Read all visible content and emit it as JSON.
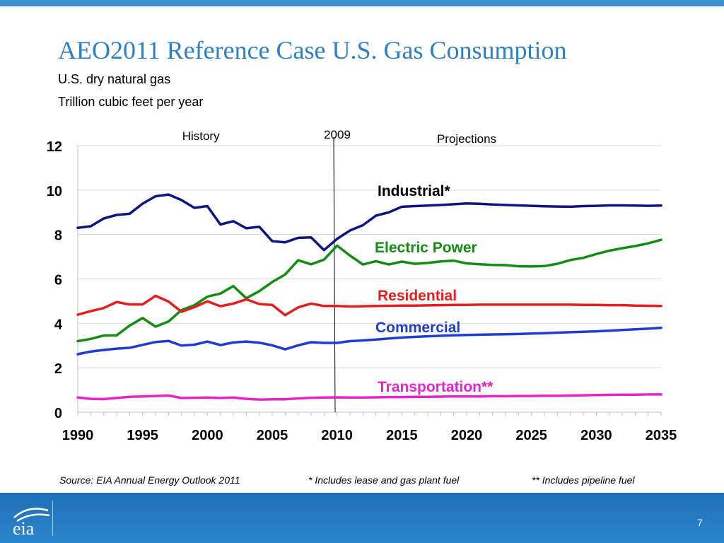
{
  "slide": {
    "title": "AEO2011 Reference Case U.S. Gas Consumption",
    "subtitle1": "U.S. dry natural gas",
    "subtitle2": "Trillion cubic feet per year",
    "source": "Source: EIA Annual Energy Outlook 2011",
    "note1": "*  Includes lease and gas plant fuel",
    "note2": "**  Includes pipeline fuel",
    "logo_text": "eia",
    "page_number": "7",
    "bar_color": "#3c8fd1"
  },
  "chart_data": {
    "type": "line",
    "xlim": [
      1990,
      2035
    ],
    "ylim": [
      0,
      12
    ],
    "x_ticks": [
      1990,
      1995,
      2000,
      2005,
      2010,
      2015,
      2020,
      2025,
      2030,
      2035
    ],
    "y_ticks": [
      0,
      2,
      4,
      6,
      8,
      10,
      12
    ],
    "grid": "horizontal",
    "history_label": "History",
    "projections_label": "Projections",
    "divider_label": "2009",
    "divider_year": 2009.8,
    "series": [
      {
        "name": "Industrial*",
        "color": "#0d1580",
        "values": [
          [
            1990,
            8.3
          ],
          [
            1991,
            8.37
          ],
          [
            1992,
            8.72
          ],
          [
            1993,
            8.88
          ],
          [
            1994,
            8.93
          ],
          [
            1995,
            9.39
          ],
          [
            1996,
            9.72
          ],
          [
            1997,
            9.8
          ],
          [
            1998,
            9.55
          ],
          [
            1999,
            9.2
          ],
          [
            2000,
            9.28
          ],
          [
            2001,
            8.45
          ],
          [
            2002,
            8.6
          ],
          [
            2003,
            8.28
          ],
          [
            2004,
            8.35
          ],
          [
            2005,
            7.7
          ],
          [
            2006,
            7.65
          ],
          [
            2007,
            7.85
          ],
          [
            2008,
            7.87
          ],
          [
            2009,
            7.3
          ],
          [
            2010,
            7.8
          ],
          [
            2011,
            8.18
          ],
          [
            2012,
            8.42
          ],
          [
            2013,
            8.85
          ],
          [
            2014,
            9.0
          ],
          [
            2015,
            9.25
          ],
          [
            2016,
            9.28
          ],
          [
            2017,
            9.3
          ],
          [
            2018,
            9.33
          ],
          [
            2019,
            9.36
          ],
          [
            2020,
            9.4
          ],
          [
            2021,
            9.38
          ],
          [
            2022,
            9.35
          ],
          [
            2023,
            9.33
          ],
          [
            2024,
            9.31
          ],
          [
            2025,
            9.29
          ],
          [
            2026,
            9.27
          ],
          [
            2027,
            9.26
          ],
          [
            2028,
            9.25
          ],
          [
            2029,
            9.28
          ],
          [
            2030,
            9.29
          ],
          [
            2031,
            9.31
          ],
          [
            2032,
            9.31
          ],
          [
            2033,
            9.3
          ],
          [
            2034,
            9.29
          ],
          [
            2035,
            9.3
          ]
        ]
      },
      {
        "name": "Electric Power",
        "color": "#148c14",
        "values": [
          [
            1990,
            3.2
          ],
          [
            1991,
            3.3
          ],
          [
            1992,
            3.45
          ],
          [
            1993,
            3.46
          ],
          [
            1994,
            3.9
          ],
          [
            1995,
            4.24
          ],
          [
            1996,
            3.85
          ],
          [
            1997,
            4.08
          ],
          [
            1998,
            4.6
          ],
          [
            1999,
            4.82
          ],
          [
            2000,
            5.2
          ],
          [
            2001,
            5.34
          ],
          [
            2002,
            5.68
          ],
          [
            2003,
            5.13
          ],
          [
            2004,
            5.45
          ],
          [
            2005,
            5.86
          ],
          [
            2006,
            6.2
          ],
          [
            2007,
            6.84
          ],
          [
            2008,
            6.66
          ],
          [
            2009,
            6.87
          ],
          [
            2010,
            7.5
          ],
          [
            2011,
            7.05
          ],
          [
            2012,
            6.65
          ],
          [
            2013,
            6.8
          ],
          [
            2014,
            6.65
          ],
          [
            2015,
            6.78
          ],
          [
            2016,
            6.68
          ],
          [
            2017,
            6.72
          ],
          [
            2018,
            6.79
          ],
          [
            2019,
            6.82
          ],
          [
            2020,
            6.7
          ],
          [
            2021,
            6.66
          ],
          [
            2022,
            6.63
          ],
          [
            2023,
            6.62
          ],
          [
            2024,
            6.57
          ],
          [
            2025,
            6.56
          ],
          [
            2026,
            6.58
          ],
          [
            2027,
            6.68
          ],
          [
            2028,
            6.85
          ],
          [
            2029,
            6.95
          ],
          [
            2030,
            7.12
          ],
          [
            2031,
            7.27
          ],
          [
            2032,
            7.38
          ],
          [
            2033,
            7.48
          ],
          [
            2034,
            7.6
          ],
          [
            2035,
            7.76
          ]
        ]
      },
      {
        "name": "Residential",
        "color": "#e31e1e",
        "values": [
          [
            1990,
            4.39
          ],
          [
            1991,
            4.55
          ],
          [
            1992,
            4.69
          ],
          [
            1993,
            4.96
          ],
          [
            1994,
            4.85
          ],
          [
            1995,
            4.85
          ],
          [
            1996,
            5.24
          ],
          [
            1997,
            4.98
          ],
          [
            1998,
            4.52
          ],
          [
            1999,
            4.73
          ],
          [
            2000,
            4.99
          ],
          [
            2001,
            4.77
          ],
          [
            2002,
            4.89
          ],
          [
            2003,
            5.08
          ],
          [
            2004,
            4.87
          ],
          [
            2005,
            4.83
          ],
          [
            2006,
            4.37
          ],
          [
            2007,
            4.72
          ],
          [
            2008,
            4.89
          ],
          [
            2009,
            4.78
          ],
          [
            2010,
            4.78
          ],
          [
            2011,
            4.76
          ],
          [
            2012,
            4.77
          ],
          [
            2013,
            4.78
          ],
          [
            2014,
            4.79
          ],
          [
            2015,
            4.8
          ],
          [
            2016,
            4.8
          ],
          [
            2017,
            4.81
          ],
          [
            2018,
            4.82
          ],
          [
            2019,
            4.83
          ],
          [
            2020,
            4.83
          ],
          [
            2021,
            4.84
          ],
          [
            2022,
            4.84
          ],
          [
            2023,
            4.84
          ],
          [
            2024,
            4.84
          ],
          [
            2025,
            4.84
          ],
          [
            2026,
            4.84
          ],
          [
            2027,
            4.84
          ],
          [
            2028,
            4.84
          ],
          [
            2029,
            4.83
          ],
          [
            2030,
            4.83
          ],
          [
            2031,
            4.82
          ],
          [
            2032,
            4.82
          ],
          [
            2033,
            4.8
          ],
          [
            2034,
            4.79
          ],
          [
            2035,
            4.78
          ]
        ]
      },
      {
        "name": "Commercial",
        "color": "#1e3cd2",
        "values": [
          [
            1990,
            2.61
          ],
          [
            1991,
            2.73
          ],
          [
            1992,
            2.8
          ],
          [
            1993,
            2.86
          ],
          [
            1994,
            2.9
          ],
          [
            1995,
            3.03
          ],
          [
            1996,
            3.16
          ],
          [
            1997,
            3.21
          ],
          [
            1998,
            3.0
          ],
          [
            1999,
            3.04
          ],
          [
            2000,
            3.18
          ],
          [
            2001,
            3.02
          ],
          [
            2002,
            3.14
          ],
          [
            2003,
            3.18
          ],
          [
            2004,
            3.13
          ],
          [
            2005,
            3.01
          ],
          [
            2006,
            2.83
          ],
          [
            2007,
            3.01
          ],
          [
            2008,
            3.15
          ],
          [
            2009,
            3.12
          ],
          [
            2010,
            3.12
          ],
          [
            2011,
            3.2
          ],
          [
            2012,
            3.23
          ],
          [
            2013,
            3.27
          ],
          [
            2014,
            3.32
          ],
          [
            2015,
            3.36
          ],
          [
            2016,
            3.39
          ],
          [
            2017,
            3.42
          ],
          [
            2018,
            3.44
          ],
          [
            2019,
            3.46
          ],
          [
            2020,
            3.48
          ],
          [
            2021,
            3.49
          ],
          [
            2022,
            3.5
          ],
          [
            2023,
            3.51
          ],
          [
            2024,
            3.52
          ],
          [
            2025,
            3.54
          ],
          [
            2026,
            3.56
          ],
          [
            2027,
            3.58
          ],
          [
            2028,
            3.6
          ],
          [
            2029,
            3.62
          ],
          [
            2030,
            3.64
          ],
          [
            2031,
            3.67
          ],
          [
            2032,
            3.7
          ],
          [
            2033,
            3.73
          ],
          [
            2034,
            3.76
          ],
          [
            2035,
            3.8
          ]
        ]
      },
      {
        "name": "Transportation**",
        "color": "#e624c8",
        "values": [
          [
            1990,
            0.66
          ],
          [
            1991,
            0.6
          ],
          [
            1992,
            0.59
          ],
          [
            1993,
            0.64
          ],
          [
            1994,
            0.69
          ],
          [
            1995,
            0.71
          ],
          [
            1996,
            0.73
          ],
          [
            1997,
            0.75
          ],
          [
            1998,
            0.64
          ],
          [
            1999,
            0.65
          ],
          [
            2000,
            0.66
          ],
          [
            2001,
            0.64
          ],
          [
            2002,
            0.66
          ],
          [
            2003,
            0.6
          ],
          [
            2004,
            0.57
          ],
          [
            2005,
            0.58
          ],
          [
            2006,
            0.58
          ],
          [
            2007,
            0.62
          ],
          [
            2008,
            0.65
          ],
          [
            2009,
            0.66
          ],
          [
            2010,
            0.67
          ],
          [
            2011,
            0.66
          ],
          [
            2012,
            0.66
          ],
          [
            2013,
            0.67
          ],
          [
            2014,
            0.68
          ],
          [
            2015,
            0.68
          ],
          [
            2016,
            0.69
          ],
          [
            2017,
            0.69
          ],
          [
            2018,
            0.7
          ],
          [
            2019,
            0.71
          ],
          [
            2020,
            0.71
          ],
          [
            2021,
            0.71
          ],
          [
            2022,
            0.72
          ],
          [
            2023,
            0.72
          ],
          [
            2024,
            0.73
          ],
          [
            2025,
            0.73
          ],
          [
            2026,
            0.74
          ],
          [
            2027,
            0.74
          ],
          [
            2028,
            0.75
          ],
          [
            2029,
            0.76
          ],
          [
            2030,
            0.77
          ],
          [
            2031,
            0.78
          ],
          [
            2032,
            0.79
          ],
          [
            2033,
            0.79
          ],
          [
            2034,
            0.8
          ],
          [
            2035,
            0.8
          ]
        ]
      }
    ]
  }
}
